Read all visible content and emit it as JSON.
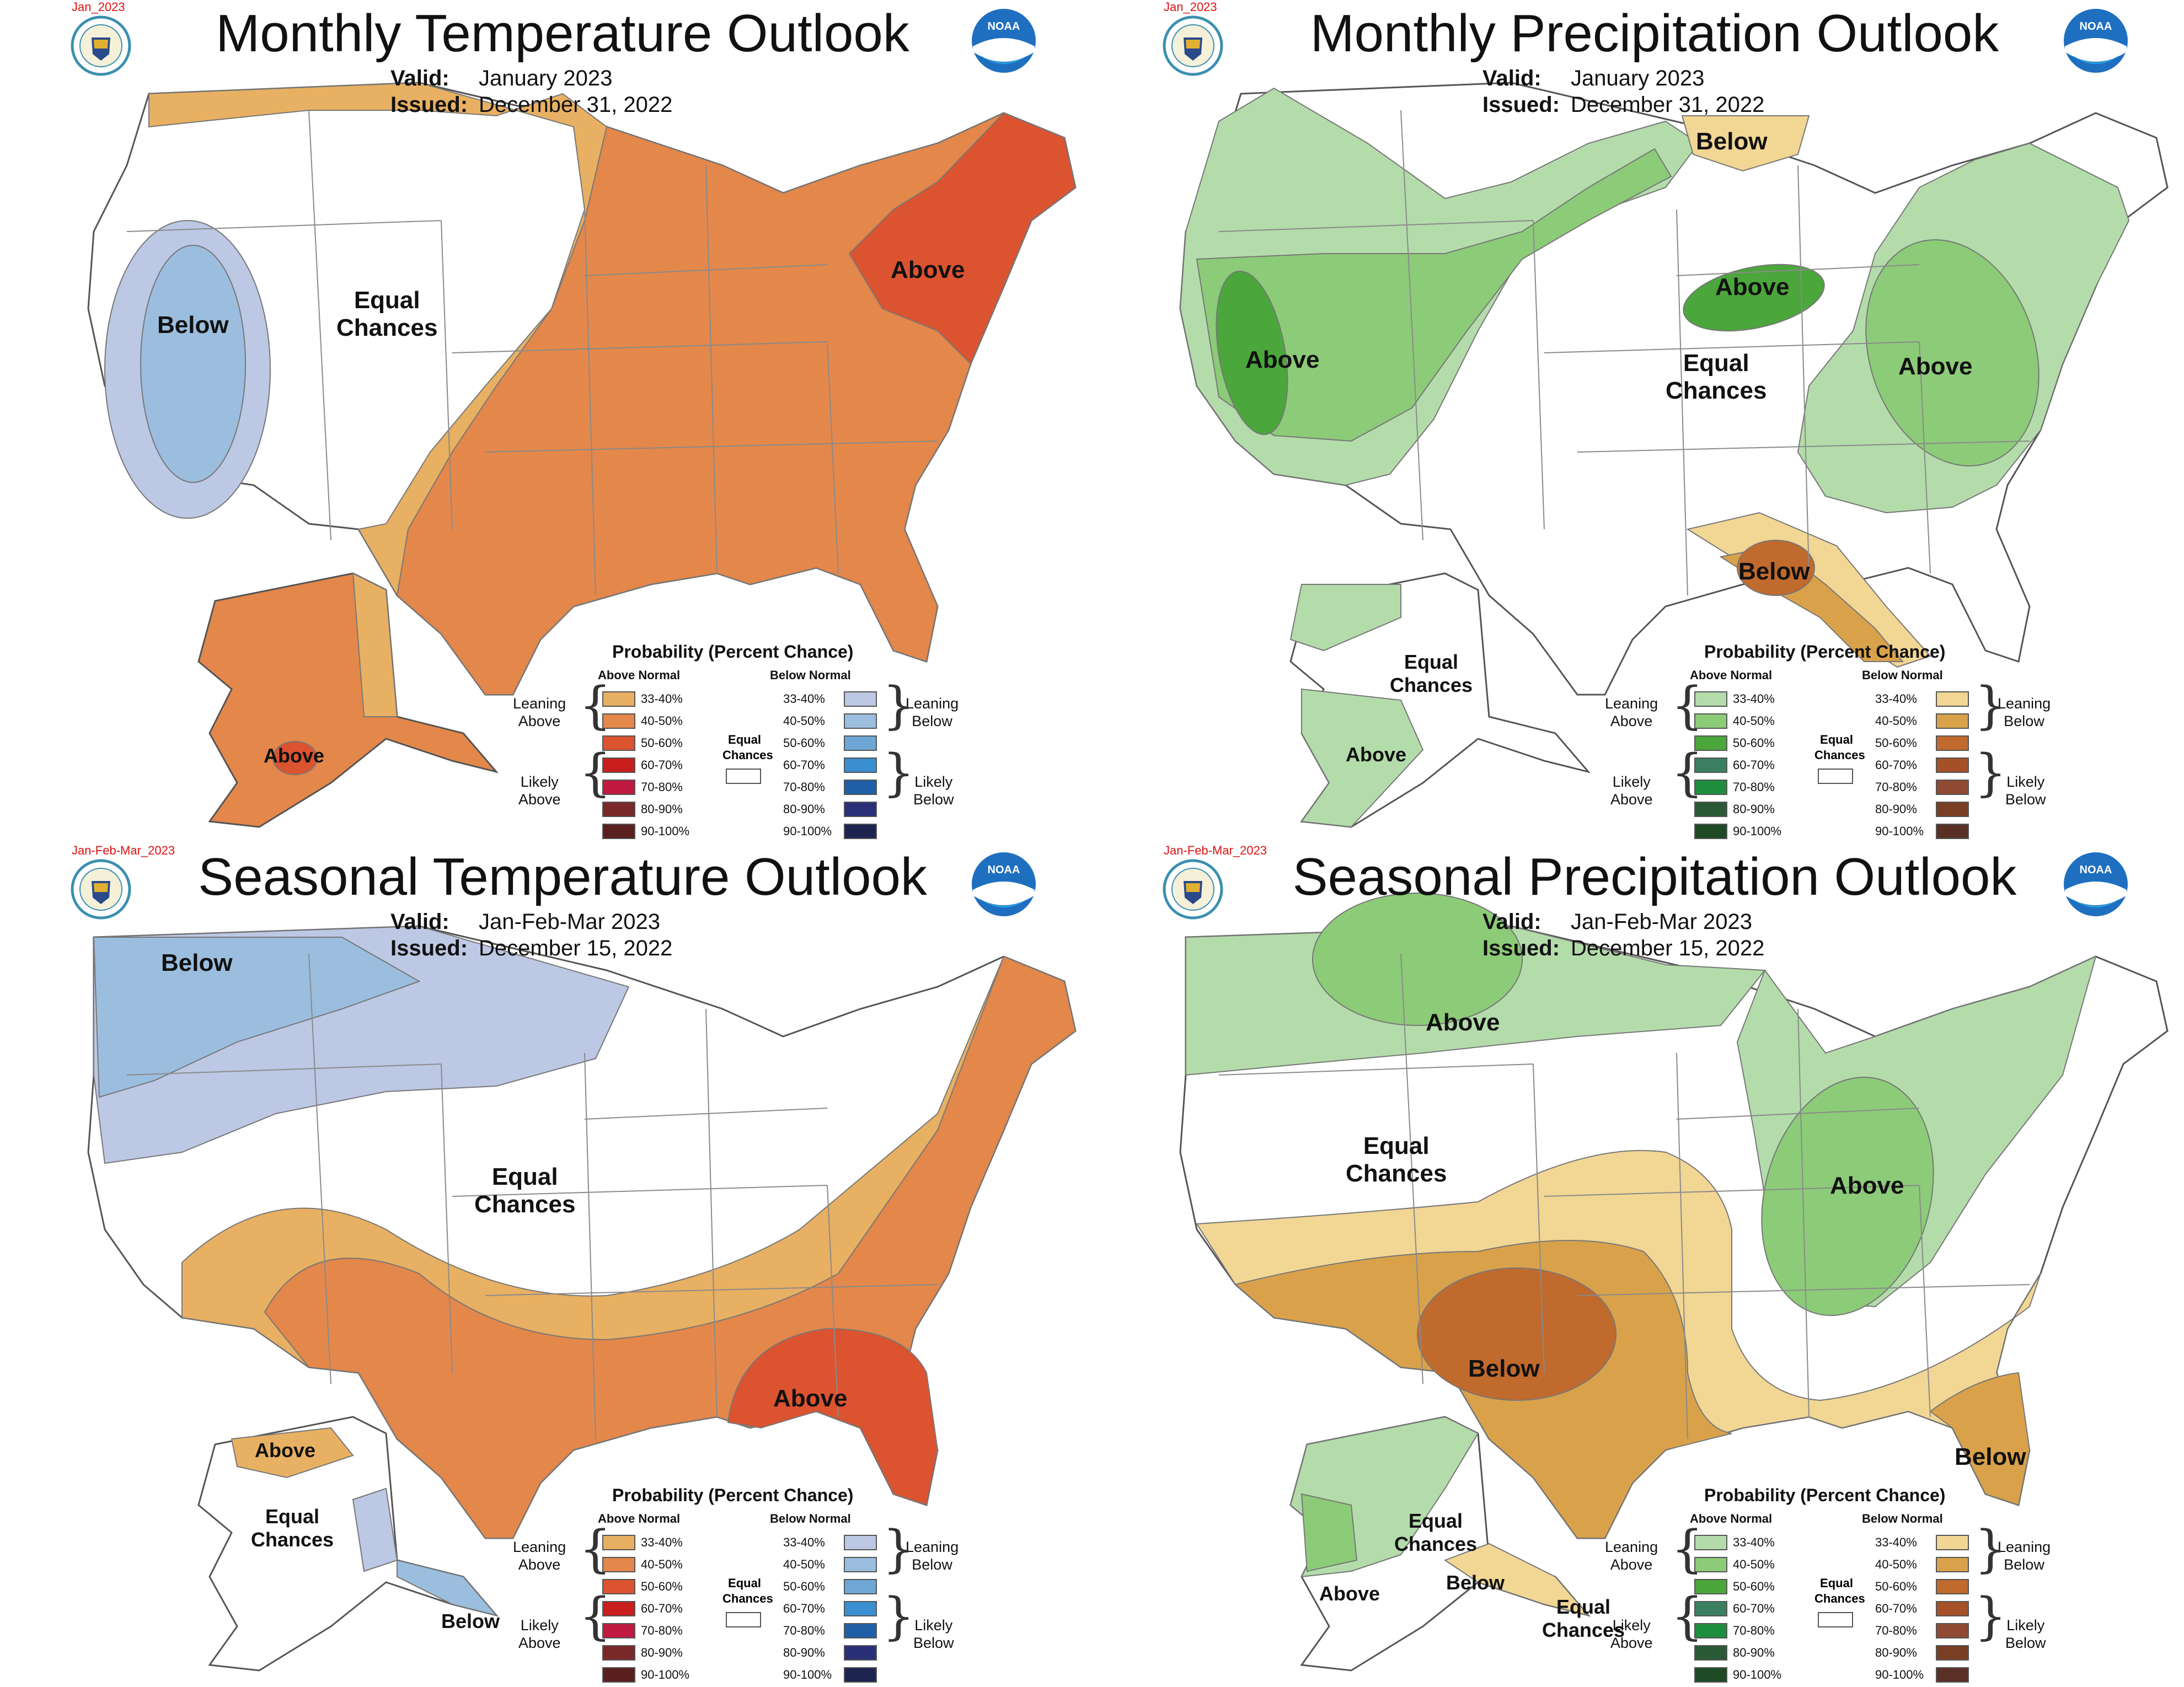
{
  "colors": {
    "temp_above": [
      "#E8B062",
      "#E3874A",
      "#DC5330",
      "#C81E1E",
      "#C01A40",
      "#7B2828",
      "#5A2020"
    ],
    "temp_below": [
      "#BCC8E4",
      "#9BBEDF",
      "#6EA7D6",
      "#3A8FD0",
      "#1F5FA8",
      "#2A2F78",
      "#1E2450"
    ],
    "prcp_above": [
      "#B3DCAA",
      "#8CCB78",
      "#4BA63C",
      "#3A8060",
      "#1E8E3E",
      "#2A5A35",
      "#1E4A25"
    ],
    "prcp_below": [
      "#F2D694",
      "#D9A24A",
      "#C06A2E",
      "#A65028",
      "#904A34",
      "#7A3E24",
      "#5A3026"
    ],
    "outline": "#777777",
    "state_line": "#8a8a8a"
  },
  "legend": {
    "title": "Probability (Percent Chance)",
    "above_header": "Above Normal",
    "below_header": "Below Normal",
    "ranges": [
      "33-40%",
      "40-50%",
      "50-60%",
      "60-70%",
      "70-80%",
      "80-90%",
      "90-100%"
    ],
    "leaning_above": "Leaning\nAbove",
    "likely_above": "Likely\nAbove",
    "leaning_below": "Leaning\nBelow",
    "likely_below": "Likely\nBelow",
    "equal_chances": "Equal\nChances"
  },
  "panels": [
    {
      "id": "monthly-temp",
      "tag": "Jan_2023",
      "title": "Monthly Temperature Outlook",
      "valid_label": "Valid:",
      "valid_value": "January 2023",
      "issued_label": "Issued:",
      "issued_value": "December 31, 2022",
      "labels": [
        "Below",
        "Equal\nChances",
        "Above",
        "Above"
      ]
    },
    {
      "id": "monthly-prcp",
      "tag": "Jan_2023",
      "title": "Monthly Precipitation Outlook",
      "valid_label": "Valid:",
      "valid_value": "January 2023",
      "issued_label": "Issued:",
      "issued_value": "December 31, 2022",
      "labels": [
        "Below",
        "Above",
        "Above",
        "Equal\nChances",
        "Above",
        "Below",
        "Equal\nChances",
        "Above"
      ]
    },
    {
      "id": "seasonal-temp",
      "tag": "Jan-Feb-Mar_2023",
      "title": "Seasonal Temperature Outlook",
      "valid_label": "Valid:",
      "valid_value": "Jan-Feb-Mar 2023",
      "issued_label": "Issued:",
      "issued_value": "December 15, 2022",
      "labels": [
        "Below",
        "Equal\nChances",
        "Above",
        "Above",
        "Equal\nChances",
        "Below"
      ]
    },
    {
      "id": "seasonal-prcp",
      "tag": "Jan-Feb-Mar_2023",
      "title": "Seasonal Precipitation Outlook",
      "valid_label": "Valid:",
      "valid_value": "Jan-Feb-Mar 2023",
      "issued_label": "Issued:",
      "issued_value": "December 15, 2022",
      "labels": [
        "Above",
        "Equal\nChances",
        "Above",
        "Below",
        "Below",
        "Equal\nChances",
        "Above",
        "Below",
        "Equal\nChances"
      ]
    }
  ]
}
